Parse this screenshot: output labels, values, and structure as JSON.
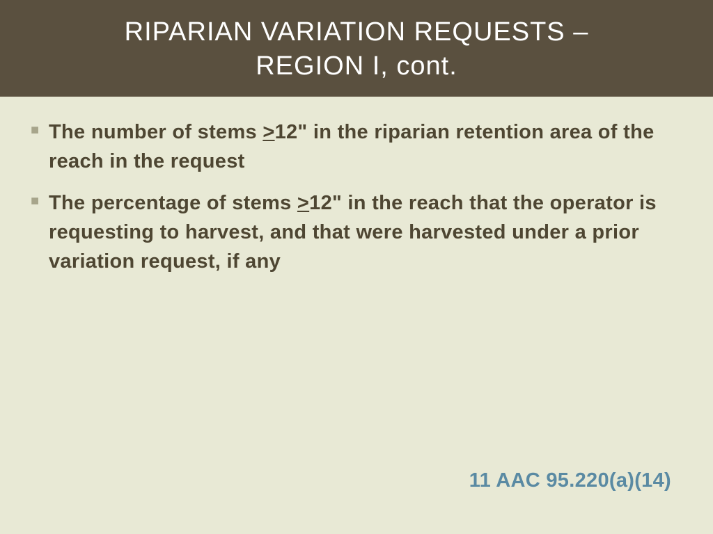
{
  "colors": {
    "slide_background": "#e8e9d5",
    "header_background": "#5a503f",
    "header_text": "#ffffff",
    "body_text": "#4e4632",
    "bullet_marker": "#a7a58b",
    "citation_text": "#5a8aa3"
  },
  "typography": {
    "header_fontsize": 38,
    "body_fontsize": 29,
    "citation_fontsize": 29,
    "font_family": "Verdana, Geneva, sans-serif",
    "body_weight": 700,
    "header_weight": 400
  },
  "header": {
    "title_line1": "RIPARIAN VARIATION REQUESTS –",
    "title_line2": "REGION I, cont."
  },
  "bullets": [
    {
      "pre": "The number of stems ",
      "gte": ">",
      "post": "12\" in the riparian retention area of the reach in the request"
    },
    {
      "pre": "The percentage of stems ",
      "gte": ">",
      "post": "12\" in the reach that the operator is requesting to harvest, and that were harvested under a prior variation request, if any"
    }
  ],
  "citation": "11 AAC 95.220(a)(14)"
}
